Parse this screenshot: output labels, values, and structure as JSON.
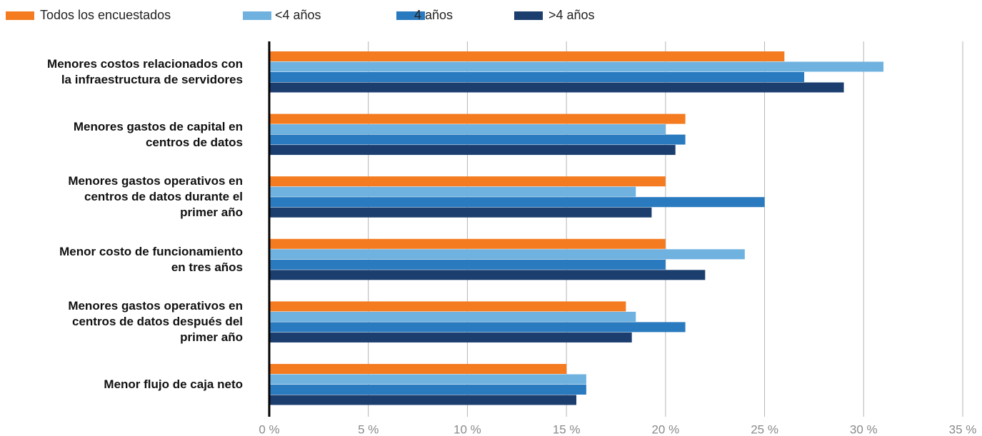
{
  "chart_data": {
    "type": "barh",
    "categories": [
      "Menores costos relacionados con\nla infraestructura de servidores",
      "Menores gastos de capital en\ncentros de datos",
      "Menores gastos operativos en\ncentros de datos durante el\nprimer año",
      "Menor costo de funcionamiento\nen tres años",
      "Menores gastos operativos en\ncentros de datos después del\nprimer año",
      "Menor flujo de caja neto"
    ],
    "series": [
      {
        "name": "Todos los encuestados",
        "color": "#f47b20",
        "values": [
          26,
          21,
          20,
          20,
          18,
          15
        ]
      },
      {
        "name": "<4 años",
        "color": "#6fb2e0",
        "values": [
          31,
          20,
          18.5,
          24,
          18.5,
          16
        ]
      },
      {
        "name": "4 años",
        "color": "#2a7abf",
        "values": [
          27,
          21,
          25,
          20,
          21,
          16
        ]
      },
      {
        "name": ">4 años",
        "color": "#1b3e6f",
        "values": [
          29,
          20.5,
          19.3,
          22,
          18.3,
          15.5
        ]
      }
    ],
    "xlim": [
      0,
      35
    ],
    "xticks": [
      {
        "value": 0,
        "label": "0 %"
      },
      {
        "value": 5,
        "label": "5 %"
      },
      {
        "value": 10,
        "label": "10 %"
      },
      {
        "value": 15,
        "label": "15 %"
      },
      {
        "value": 20,
        "label": "20 %"
      },
      {
        "value": 25,
        "label": "25 %"
      },
      {
        "value": 30,
        "label": "30 %"
      },
      {
        "value": 35,
        "label": "35 %"
      }
    ],
    "grid": true,
    "legend": "top"
  }
}
